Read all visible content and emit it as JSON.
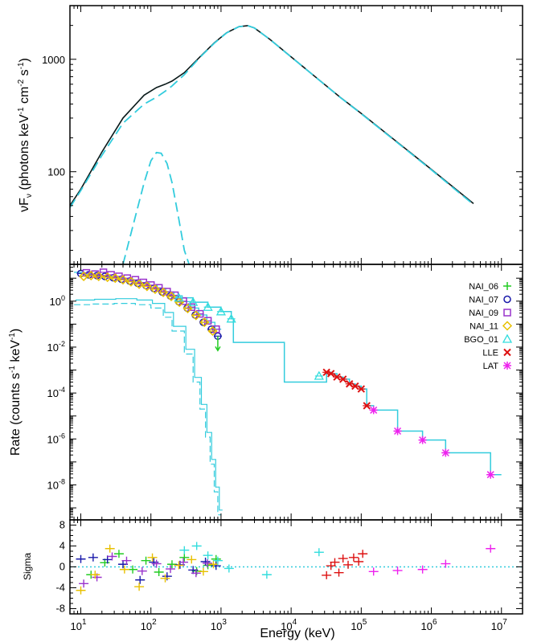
{
  "chart_data": [
    {
      "panel": "top",
      "type": "line",
      "ylabel": "νF",
      "ylabel_sub": "ν",
      "ylabel_units": " (photons keV",
      "ylabel_units2": " cm",
      "ylabel_units3": " s",
      "ylabel_units4": ")",
      "ylabel_exp": "-1",
      "ylabel_exp2": "-2",
      "ylabel_exp3": "-1",
      "xscale": "log",
      "yscale": "log",
      "xlim": [
        7,
        20000000
      ],
      "ylim": [
        15,
        3000
      ],
      "ytick_labels": [
        {
          "value": 100,
          "label": "100"
        },
        {
          "value": 1000,
          "label": "1000"
        }
      ],
      "series": [
        {
          "style": "solid-black",
          "x": [
            7,
            10,
            20,
            40,
            80,
            120,
            160,
            200,
            300,
            500,
            800,
            1200,
            1800,
            2400,
            3000,
            5000,
            10000,
            50000,
            100000,
            1000000,
            4000000
          ],
          "y": [
            50,
            70,
            150,
            300,
            480,
            560,
            600,
            640,
            760,
            1050,
            1400,
            1720,
            1950,
            1990,
            1900,
            1500,
            1050,
            460,
            330,
            105,
            52
          ]
        },
        {
          "style": "dashed-cyan",
          "x": [
            7,
            10,
            20,
            40,
            80,
            120,
            160,
            200,
            300,
            500,
            800,
            1200,
            1800,
            2400,
            3000,
            5000,
            10000,
            50000,
            100000,
            1000000,
            4000000
          ],
          "y": [
            48,
            68,
            140,
            270,
            400,
            460,
            520,
            580,
            730,
            1040,
            1390,
            1715,
            1948,
            1988,
            1898,
            1498,
            1048,
            458,
            328,
            104,
            51
          ]
        },
        {
          "style": "dashed-cyan",
          "x": [
            40,
            60,
            80,
            100,
            120,
            140,
            170,
            200,
            250,
            300,
            350
          ],
          "y": [
            15,
            40,
            80,
            125,
            148,
            146,
            118,
            80,
            38,
            20,
            15
          ]
        }
      ]
    },
    {
      "panel": "middle",
      "type": "scatter",
      "ylabel": "Rate (counts s",
      "ylabel_exp": "-1",
      "ylabel_tail": " keV",
      "ylabel_exp2": "-1",
      "ylabel_end": ")",
      "xscale": "log",
      "yscale": "log",
      "xlim": [
        7,
        20000000
      ],
      "ylim": [
        3e-10,
        40
      ],
      "ytick_labels": [
        {
          "value": 1,
          "base": "10",
          "exp": "0"
        },
        {
          "value": 0.01,
          "base": "10",
          "exp": "-2"
        },
        {
          "value": 0.0001,
          "base": "10",
          "exp": "-4"
        },
        {
          "value": 1e-06,
          "base": "10",
          "exp": "-6"
        },
        {
          "value": 1e-08,
          "base": "10",
          "exp": "-8"
        }
      ],
      "legend": [
        {
          "name": "NAI_06",
          "marker": "plus",
          "color": "#22cc22"
        },
        {
          "name": "NAI_07",
          "marker": "circle",
          "color": "#1a1aaa"
        },
        {
          "name": "NAI_09",
          "marker": "square",
          "color": "#9933cc"
        },
        {
          "name": "NAI_11",
          "marker": "diamond",
          "color": "#e8c000"
        },
        {
          "name": "BGO_01",
          "marker": "triangle",
          "color": "#33dddd"
        },
        {
          "name": "LLE",
          "marker": "x",
          "color": "#dd1111"
        },
        {
          "name": "LAT",
          "marker": "asterisk",
          "color": "#ee22ee"
        }
      ],
      "legend_position": "top-right",
      "series": [
        {
          "name": "NAI_07",
          "x": [
            10,
            13,
            17,
            22,
            29,
            38,
            50,
            65,
            85,
            110,
            145,
            190,
            250,
            330,
            430,
            560,
            730,
            900
          ],
          "y": [
            16,
            14,
            13,
            12,
            10.5,
            9,
            7.5,
            6,
            4.8,
            3.6,
            2.5,
            1.7,
            0.95,
            0.5,
            0.25,
            0.12,
            0.06,
            0.03
          ]
        },
        {
          "name": "NAI_09",
          "x": [
            12,
            16,
            21,
            27,
            35,
            46,
            60,
            78,
            100,
            130,
            170,
            220,
            290,
            380,
            500,
            650,
            850
          ],
          "y": [
            17,
            15,
            18,
            14,
            12,
            10,
            8.5,
            6.5,
            5,
            3.8,
            2.6,
            1.8,
            1.0,
            0.55,
            0.28,
            0.14,
            0.06
          ]
        },
        {
          "name": "NAI_11",
          "x": [
            11,
            14,
            18,
            24,
            31,
            40,
            52,
            68,
            88,
            115,
            150,
            195,
            255,
            335,
            440,
            580,
            760
          ],
          "y": [
            12,
            13,
            12,
            11,
            10,
            8.5,
            7,
            5.5,
            4.4,
            3.3,
            2.4,
            1.6,
            0.9,
            0.48,
            0.24,
            0.12,
            0.05
          ]
        },
        {
          "name": "BGO_01",
          "x": [
            250,
            400,
            650,
            1000,
            1400,
            25000
          ],
          "y": [
            1.4,
            0.9,
            0.55,
            0.35,
            0.17,
            0.00055
          ]
        },
        {
          "name": "LLE",
          "x": [
            32000,
            37000,
            45000,
            55000,
            68000,
            82000,
            100000,
            120000
          ],
          "y": [
            0.0008,
            0.0007,
            0.0005,
            0.0004,
            0.00025,
            0.0002,
            0.00015,
            2.8e-05
          ]
        },
        {
          "name": "LAT",
          "x": [
            150000,
            330000,
            750000,
            1600000,
            7000000
          ],
          "y": [
            1.8e-05,
            2.2e-06,
            9e-07,
            2.5e-07,
            2.8e-08
          ]
        }
      ]
    },
    {
      "panel": "bottom",
      "type": "scatter",
      "ylabel": "Sigma",
      "xlabel": "Energy (keV)",
      "xscale": "log",
      "xlim": [
        7,
        20000000
      ],
      "ylim": [
        -9,
        9
      ],
      "ytick_labels": [
        {
          "value": 8,
          "label": "8"
        },
        {
          "value": 4,
          "label": "4"
        },
        {
          "value": 0,
          "label": "0"
        },
        {
          "value": -4,
          "label": "-4"
        },
        {
          "value": -8,
          "label": "-8"
        }
      ],
      "xtick_labels": [
        {
          "value": 10,
          "base": "10",
          "exp": "1"
        },
        {
          "value": 100,
          "base": "10",
          "exp": "2"
        },
        {
          "value": 1000,
          "base": "10",
          "exp": "3"
        },
        {
          "value": 10000,
          "base": "10",
          "exp": "4"
        },
        {
          "value": 100000,
          "base": "10",
          "exp": "5"
        },
        {
          "value": 1000000,
          "base": "10",
          "exp": "6"
        },
        {
          "value": 10000000,
          "base": "10",
          "exp": "7"
        }
      ],
      "series": [
        {
          "name": "NAI_06",
          "x": [
            14,
            22,
            35,
            55,
            85,
            130,
            200,
            300,
            450,
            650,
            850
          ],
          "y": [
            -1.5,
            0.8,
            2.5,
            -0.5,
            1.2,
            -1.0,
            0.5,
            1.8,
            -0.8,
            0.3,
            1.5
          ]
        },
        {
          "name": "NAI_07",
          "x": [
            10,
            15,
            24,
            40,
            70,
            110,
            170,
            260,
            400,
            600,
            850
          ],
          "y": [
            1.5,
            1.8,
            1.4,
            0.5,
            -2.5,
            0.9,
            -1.8,
            0.4,
            -0.6,
            1.0,
            0.2
          ]
        },
        {
          "name": "NAI_09",
          "x": [
            11,
            17,
            28,
            45,
            75,
            120,
            190,
            290,
            440,
            640
          ],
          "y": [
            -3.2,
            -2.0,
            2.0,
            1.2,
            -0.8,
            0.6,
            -0.4,
            0.9,
            -1.2,
            0.7
          ]
        },
        {
          "name": "NAI_11",
          "x": [
            10,
            16,
            26,
            42,
            68,
            105,
            160,
            250,
            380,
            560,
            780
          ],
          "y": [
            -4.5,
            -1.5,
            3.5,
            -0.5,
            -3.8,
            1.8,
            -2.2,
            0.3,
            1.4,
            -0.9,
            0.5
          ]
        },
        {
          "name": "BGO_01",
          "x": [
            300,
            450,
            650,
            900,
            1300,
            4500,
            25000
          ],
          "y": [
            3.2,
            4.0,
            2.2,
            1.2,
            -0.3,
            -1.5,
            2.8
          ]
        },
        {
          "name": "LLE",
          "x": [
            32000,
            37000,
            42000,
            48000,
            55000,
            65000,
            78000,
            92000,
            105000
          ],
          "y": [
            -1.6,
            0.2,
            0.9,
            -1.1,
            1.6,
            0.4,
            1.8,
            1.0,
            2.5
          ]
        },
        {
          "name": "LAT",
          "x": [
            150000,
            330000,
            750000,
            1600000,
            7000000
          ],
          "y": [
            -0.9,
            -0.7,
            -0.5,
            0.6,
            3.5
          ]
        }
      ]
    }
  ]
}
